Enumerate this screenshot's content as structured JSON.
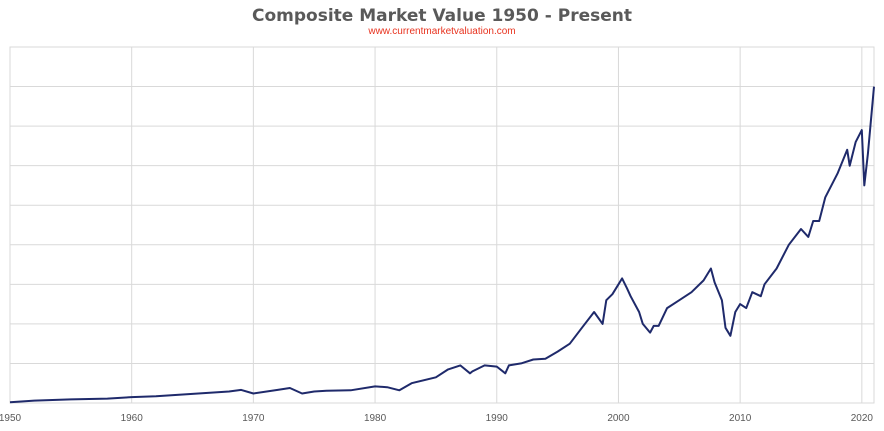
{
  "chart_data": {
    "type": "line",
    "title": "Composite Market Value 1950 - Present",
    "subtitle": "www.currentmarketvaluation.com",
    "xlabel": "",
    "ylabel": "",
    "xlim": [
      1950,
      2021
    ],
    "ylim": [
      0,
      9
    ],
    "x_ticks": [
      1950,
      1960,
      1970,
      1980,
      1990,
      2000,
      2010,
      2020
    ],
    "grid": true,
    "line_color": "#1f2a6b",
    "series": [
      {
        "name": "Composite Market Value",
        "x": [
          1950,
          1952,
          1955,
          1958,
          1960,
          1962,
          1965,
          1968,
          1969,
          1970,
          1972,
          1973,
          1974,
          1975,
          1976,
          1978,
          1980,
          1981,
          1982,
          1983,
          1985,
          1986,
          1987,
          1987.8,
          1988,
          1989,
          1990,
          1990.7,
          1991,
          1992,
          1993,
          1994,
          1995,
          1996,
          1997,
          1998,
          1998.7,
          1999,
          1999.5,
          2000,
          2000.3,
          2000.7,
          2001,
          2001.7,
          2002,
          2002.6,
          2002.9,
          2003.3,
          2004,
          2005,
          2006,
          2007,
          2007.6,
          2007.9,
          2008.5,
          2008.8,
          2009.2,
          2009.6,
          2010,
          2010.5,
          2011,
          2011.7,
          2012,
          2013,
          2014,
          2015,
          2015.6,
          2016,
          2016.5,
          2017,
          2018,
          2018.8,
          2019,
          2019.5,
          2020,
          2020.2,
          2020.5,
          2021
        ],
        "values": [
          0.02,
          0.06,
          0.09,
          0.11,
          0.15,
          0.17,
          0.23,
          0.29,
          0.33,
          0.24,
          0.33,
          0.38,
          0.24,
          0.29,
          0.31,
          0.32,
          0.42,
          0.4,
          0.32,
          0.5,
          0.65,
          0.85,
          0.95,
          0.75,
          0.8,
          0.95,
          0.92,
          0.75,
          0.95,
          1.0,
          1.1,
          1.12,
          1.3,
          1.5,
          1.9,
          2.3,
          2.0,
          2.6,
          2.75,
          3.0,
          3.15,
          2.9,
          2.7,
          2.3,
          2.0,
          1.78,
          1.95,
          1.95,
          2.4,
          2.6,
          2.8,
          3.1,
          3.4,
          3.05,
          2.6,
          1.9,
          1.7,
          2.3,
          2.5,
          2.4,
          2.8,
          2.7,
          3.0,
          3.4,
          4.0,
          4.4,
          4.2,
          4.6,
          4.6,
          5.2,
          5.8,
          6.4,
          6.0,
          6.6,
          6.9,
          5.5,
          6.3,
          8.0
        ]
      }
    ]
  }
}
